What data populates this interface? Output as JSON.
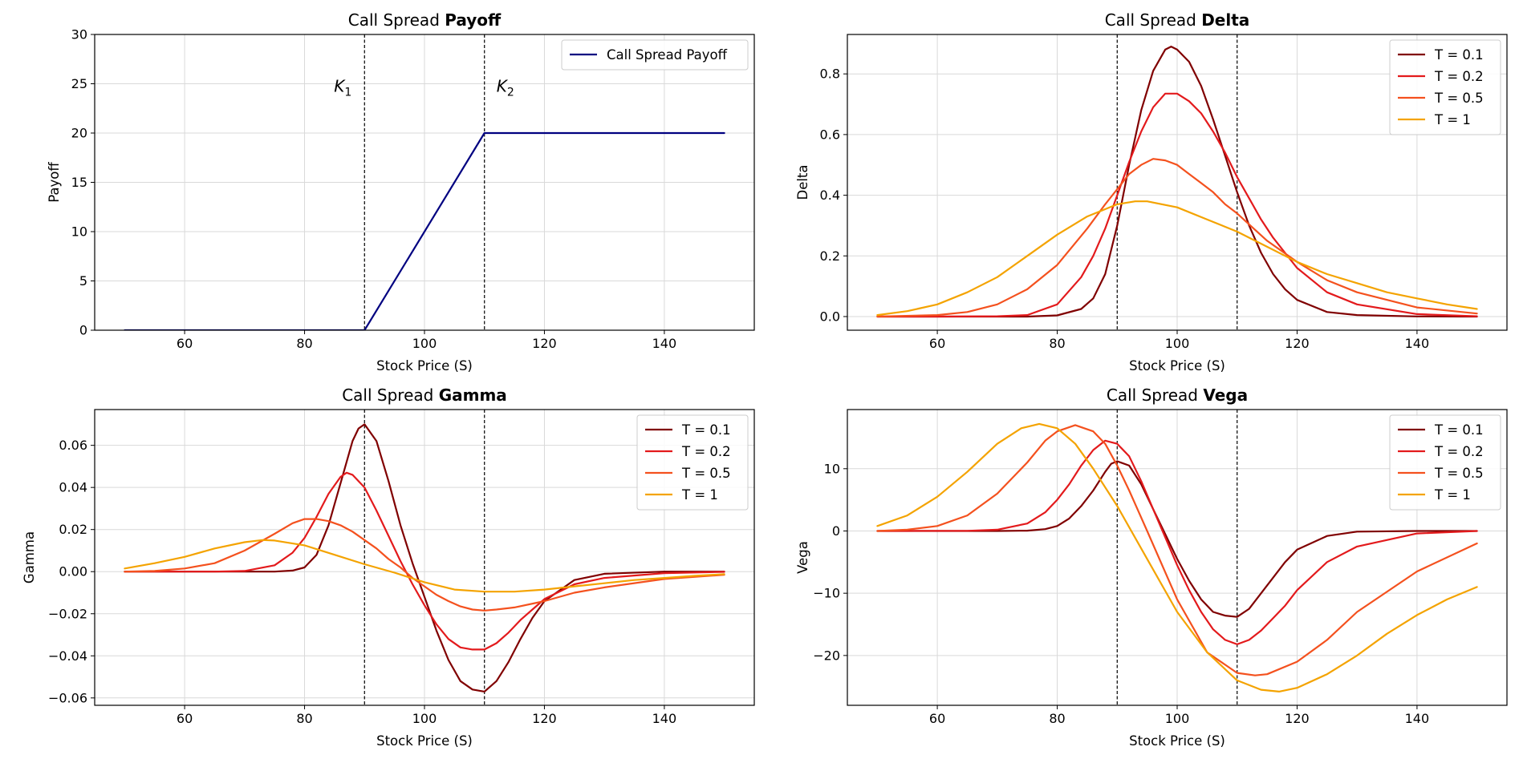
{
  "colors": {
    "navy": "#000080",
    "t01": "#800000",
    "t02": "#e31a1c",
    "t05": "#f4511e",
    "t1": "#f4a300",
    "grid": "#d9d9d9"
  },
  "strikes": {
    "k1": 90,
    "k2": 110,
    "k1_label": "K",
    "k1_sub": "1",
    "k2_label": "K",
    "k2_sub": "2"
  },
  "chart_data": [
    {
      "id": "payoff",
      "type": "line",
      "title_prefix": "Call Spread ",
      "title_bold": "Payoff",
      "xlabel": "Stock Price (S)",
      "ylabel": "Payoff",
      "xlim": [
        45,
        155
      ],
      "ylim": [
        0,
        30
      ],
      "xticks": [
        60,
        80,
        100,
        120,
        140
      ],
      "yticks": [
        0,
        5,
        10,
        15,
        20,
        25,
        30
      ],
      "ytick_labels": [
        "0",
        "5",
        "10",
        "15",
        "20",
        "25",
        "30"
      ],
      "grid": true,
      "legend_position": "top-right",
      "series": [
        {
          "name": "Call Spread Payoff",
          "color": "#000080",
          "x": [
            50,
            90,
            110,
            150
          ],
          "y": [
            0,
            0,
            20,
            20
          ]
        }
      ]
    },
    {
      "id": "delta",
      "type": "line",
      "title_prefix": "Call Spread ",
      "title_bold": "Delta",
      "xlabel": "Stock Price (S)",
      "ylabel": "Delta",
      "xlim": [
        45,
        155
      ],
      "ylim": [
        -0.045,
        0.93
      ],
      "xticks": [
        60,
        80,
        100,
        120,
        140
      ],
      "yticks": [
        0,
        0.2,
        0.4,
        0.6,
        0.8
      ],
      "ytick_labels": [
        "0.0",
        "0.2",
        "0.4",
        "0.6",
        "0.8"
      ],
      "grid": true,
      "legend_position": "top-right",
      "series": [
        {
          "name": "T = 0.1",
          "color": "#800000",
          "x": [
            50,
            60,
            70,
            75,
            80,
            84,
            86,
            88,
            90,
            92,
            94,
            96,
            98,
            99,
            100,
            102,
            104,
            106,
            108,
            110,
            112,
            114,
            116,
            118,
            120,
            125,
            130,
            140,
            150
          ],
          "y": [
            0,
            0,
            0,
            0,
            0.004,
            0.025,
            0.06,
            0.14,
            0.3,
            0.5,
            0.68,
            0.81,
            0.88,
            0.89,
            0.88,
            0.84,
            0.76,
            0.65,
            0.53,
            0.41,
            0.3,
            0.21,
            0.14,
            0.09,
            0.055,
            0.015,
            0.005,
            0.0005,
            0
          ]
        },
        {
          "name": "T = 0.2",
          "color": "#e31a1c",
          "x": [
            50,
            60,
            70,
            75,
            80,
            84,
            86,
            88,
            90,
            92,
            94,
            96,
            98,
            100,
            102,
            104,
            106,
            108,
            110,
            112,
            114,
            116,
            118,
            120,
            125,
            130,
            140,
            150
          ],
          "y": [
            0,
            0,
            0.001,
            0.005,
            0.04,
            0.13,
            0.2,
            0.29,
            0.4,
            0.51,
            0.61,
            0.69,
            0.735,
            0.735,
            0.71,
            0.67,
            0.61,
            0.54,
            0.46,
            0.39,
            0.32,
            0.26,
            0.21,
            0.16,
            0.08,
            0.04,
            0.008,
            0.001
          ]
        },
        {
          "name": "T = 0.5",
          "color": "#f4511e",
          "x": [
            50,
            60,
            65,
            70,
            75,
            80,
            85,
            88,
            90,
            92,
            94,
            96,
            98,
            100,
            102,
            104,
            106,
            108,
            110,
            115,
            120,
            125,
            130,
            140,
            150
          ],
          "y": [
            0,
            0.005,
            0.015,
            0.04,
            0.09,
            0.17,
            0.29,
            0.37,
            0.42,
            0.47,
            0.5,
            0.52,
            0.515,
            0.5,
            0.47,
            0.44,
            0.41,
            0.37,
            0.34,
            0.25,
            0.18,
            0.12,
            0.08,
            0.03,
            0.01
          ]
        },
        {
          "name": "T = 1",
          "color": "#f4a300",
          "x": [
            50,
            55,
            60,
            65,
            70,
            75,
            80,
            85,
            90,
            93,
            95,
            100,
            105,
            110,
            115,
            120,
            125,
            130,
            135,
            140,
            145,
            150
          ],
          "y": [
            0.005,
            0.018,
            0.04,
            0.08,
            0.13,
            0.2,
            0.27,
            0.33,
            0.37,
            0.38,
            0.38,
            0.36,
            0.32,
            0.28,
            0.23,
            0.18,
            0.14,
            0.11,
            0.08,
            0.06,
            0.04,
            0.025
          ]
        }
      ]
    },
    {
      "id": "gamma",
      "type": "line",
      "title_prefix": "Call Spread ",
      "title_bold": "Gamma",
      "xlabel": "Stock Price (S)",
      "ylabel": "Gamma",
      "xlim": [
        45,
        155
      ],
      "ylim": [
        -0.0635,
        0.077
      ],
      "xticks": [
        60,
        80,
        100,
        120,
        140
      ],
      "yticks": [
        -0.06,
        -0.04,
        -0.02,
        0,
        0.02,
        0.04,
        0.06
      ],
      "ytick_labels": [
        "−0.06",
        "−0.04",
        "−0.02",
        "0.00",
        "0.02",
        "0.04",
        "0.06"
      ],
      "grid": true,
      "legend_position": "top-right",
      "series": [
        {
          "name": "T = 0.1",
          "color": "#800000",
          "x": [
            50,
            70,
            75,
            78,
            80,
            82,
            84,
            86,
            88,
            89,
            90,
            92,
            94,
            96,
            98,
            100,
            102,
            104,
            106,
            108,
            110,
            112,
            114,
            116,
            118,
            120,
            125,
            130,
            140,
            150
          ],
          "y": [
            0,
            0,
            0,
            0.0005,
            0.002,
            0.008,
            0.022,
            0.042,
            0.062,
            0.068,
            0.07,
            0.062,
            0.043,
            0.022,
            0.004,
            -0.012,
            -0.028,
            -0.042,
            -0.052,
            -0.056,
            -0.057,
            -0.052,
            -0.043,
            -0.032,
            -0.022,
            -0.014,
            -0.004,
            -0.001,
            0,
            0
          ]
        },
        {
          "name": "T = 0.2",
          "color": "#e31a1c",
          "x": [
            50,
            65,
            70,
            75,
            78,
            80,
            82,
            84,
            86,
            87,
            88,
            90,
            92,
            94,
            96,
            98,
            100,
            102,
            104,
            106,
            108,
            110,
            112,
            114,
            116,
            118,
            120,
            125,
            130,
            140,
            150
          ],
          "y": [
            0,
            0,
            0.0003,
            0.003,
            0.009,
            0.016,
            0.026,
            0.037,
            0.045,
            0.047,
            0.046,
            0.04,
            0.029,
            0.017,
            0.005,
            -0.006,
            -0.016,
            -0.025,
            -0.032,
            -0.036,
            -0.037,
            -0.037,
            -0.034,
            -0.029,
            -0.023,
            -0.018,
            -0.013,
            -0.006,
            -0.003,
            -0.0007,
            -0.0001
          ]
        },
        {
          "name": "T = 0.5",
          "color": "#f4511e",
          "x": [
            50,
            55,
            60,
            65,
            70,
            75,
            78,
            80,
            82,
            84,
            86,
            88,
            90,
            92,
            94,
            96,
            98,
            100,
            102,
            104,
            106,
            108,
            110,
            112,
            115,
            120,
            125,
            130,
            140,
            150
          ],
          "y": [
            0,
            0.0003,
            0.0015,
            0.004,
            0.01,
            0.018,
            0.023,
            0.025,
            0.025,
            0.024,
            0.022,
            0.019,
            0.015,
            0.011,
            0.006,
            0.002,
            -0.003,
            -0.007,
            -0.011,
            -0.014,
            -0.0165,
            -0.018,
            -0.0185,
            -0.018,
            -0.017,
            -0.014,
            -0.01,
            -0.0075,
            -0.0035,
            -0.0015
          ]
        },
        {
          "name": "T = 1",
          "color": "#f4a300",
          "x": [
            50,
            55,
            60,
            65,
            70,
            73,
            75,
            80,
            85,
            90,
            95,
            100,
            105,
            110,
            115,
            120,
            125,
            130,
            135,
            140,
            145,
            150
          ],
          "y": [
            0.0015,
            0.004,
            0.007,
            0.011,
            0.014,
            0.015,
            0.0148,
            0.0125,
            0.008,
            0.0035,
            -0.0005,
            -0.005,
            -0.0085,
            -0.0095,
            -0.0095,
            -0.0085,
            -0.007,
            -0.0055,
            -0.004,
            -0.003,
            -0.002,
            -0.0012
          ]
        }
      ]
    },
    {
      "id": "vega",
      "type": "line",
      "title_prefix": "Call Spread ",
      "title_bold": "Vega",
      "xlabel": "Stock Price (S)",
      "ylabel": "Vega",
      "xlim": [
        45,
        155
      ],
      "ylim": [
        -28,
        19.5
      ],
      "xticks": [
        60,
        80,
        100,
        120,
        140
      ],
      "yticks": [
        -20,
        -10,
        0,
        10
      ],
      "ytick_labels": [
        "−20",
        "−10",
        "0",
        "10"
      ],
      "grid": true,
      "legend_position": "top-right",
      "series": [
        {
          "name": "T = 0.1",
          "color": "#800000",
          "x": [
            50,
            70,
            75,
            78,
            80,
            82,
            84,
            86,
            88,
            89,
            90,
            92,
            94,
            96,
            98,
            100,
            102,
            104,
            106,
            108,
            110,
            112,
            114,
            116,
            118,
            120,
            125,
            130,
            140,
            150
          ],
          "y": [
            0,
            0,
            0.05,
            0.3,
            0.8,
            2,
            4,
            6.5,
            9.5,
            10.8,
            11.2,
            10.5,
            7.5,
            3.5,
            -0.5,
            -4.5,
            -8,
            -11,
            -13,
            -13.6,
            -13.8,
            -12.5,
            -10,
            -7.5,
            -5,
            -3,
            -0.8,
            -0.1,
            0,
            0
          ]
        },
        {
          "name": "T = 0.2",
          "color": "#e31a1c",
          "x": [
            50,
            65,
            70,
            75,
            78,
            80,
            82,
            84,
            86,
            88,
            90,
            92,
            94,
            96,
            98,
            100,
            102,
            104,
            106,
            108,
            110,
            112,
            114,
            116,
            118,
            120,
            125,
            130,
            140,
            150
          ],
          "y": [
            0,
            0.02,
            0.2,
            1.2,
            3,
            5,
            7.5,
            10.5,
            13,
            14.5,
            14,
            12,
            8,
            3.5,
            -1,
            -5.5,
            -9.5,
            -13,
            -15.8,
            -17.5,
            -18.2,
            -17.5,
            -16,
            -14,
            -12,
            -9.5,
            -5,
            -2.5,
            -0.4,
            0
          ]
        },
        {
          "name": "T = 0.5",
          "color": "#f4511e",
          "x": [
            50,
            55,
            60,
            65,
            70,
            75,
            78,
            80,
            83,
            86,
            88,
            90,
            92,
            95,
            100,
            105,
            110,
            113,
            115,
            120,
            125,
            130,
            140,
            150
          ],
          "y": [
            0,
            0.2,
            0.8,
            2.5,
            6,
            11,
            14.5,
            16,
            17,
            16,
            14,
            10.5,
            6.5,
            0,
            -11,
            -19.5,
            -22.8,
            -23.2,
            -23,
            -21,
            -17.5,
            -13,
            -6.5,
            -2
          ]
        },
        {
          "name": "T = 1",
          "color": "#f4a300",
          "x": [
            50,
            55,
            60,
            65,
            70,
            74,
            77,
            80,
            83,
            86,
            90,
            95,
            100,
            105,
            110,
            114,
            117,
            120,
            125,
            130,
            135,
            140,
            145,
            150
          ],
          "y": [
            0.8,
            2.5,
            5.5,
            9.5,
            14,
            16.5,
            17.2,
            16.5,
            14,
            10,
            4,
            -4.5,
            -13,
            -19.5,
            -24,
            -25.5,
            -25.8,
            -25.2,
            -23,
            -20,
            -16.5,
            -13.5,
            -11,
            -9
          ]
        }
      ]
    }
  ]
}
